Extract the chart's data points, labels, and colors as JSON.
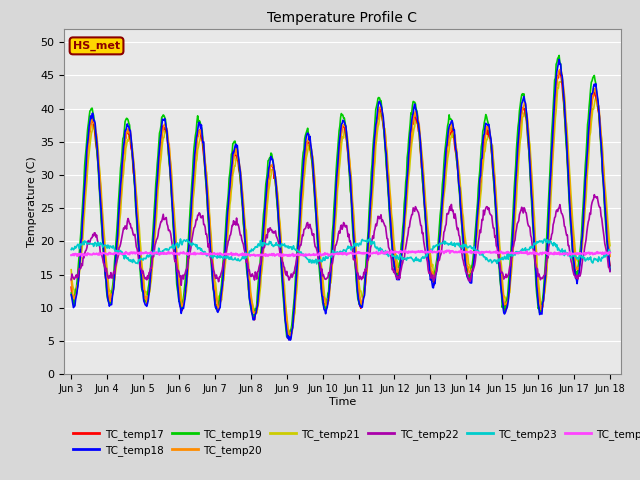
{
  "title": "Temperature Profile C",
  "xlabel": "Time",
  "ylabel": "Temperature (C)",
  "ylim": [
    0,
    52
  ],
  "xlim_days": [
    2.8,
    18.3
  ],
  "annotation": "HS_met",
  "annotation_color": "#8B0000",
  "annotation_bg": "#FFD700",
  "series_colors": {
    "TC_temp17": "#FF0000",
    "TC_temp18": "#0000FF",
    "TC_temp19": "#00CC00",
    "TC_temp20": "#FF8C00",
    "TC_temp21": "#CCCC00",
    "TC_temp22": "#AA00AA",
    "TC_temp23": "#00CCCC",
    "TC_temp24": "#FF44FF"
  },
  "background_color": "#E8E8E8",
  "grid_color": "#FFFFFF",
  "xtick_labels": [
    "Jun 3",
    "Jun 4",
    "Jun 5",
    "Jun 6",
    "Jun 7",
    "Jun 8",
    "Jun 9",
    "Jun 10",
    "Jun 11",
    "Jun 12",
    "Jun 13",
    "Jun 14",
    "Jun 15",
    "Jun 16",
    "Jun 17",
    "Jun 18"
  ],
  "xtick_positions": [
    3,
    4,
    5,
    6,
    7,
    8,
    9,
    10,
    11,
    12,
    13,
    14,
    15,
    16,
    17,
    18
  ]
}
